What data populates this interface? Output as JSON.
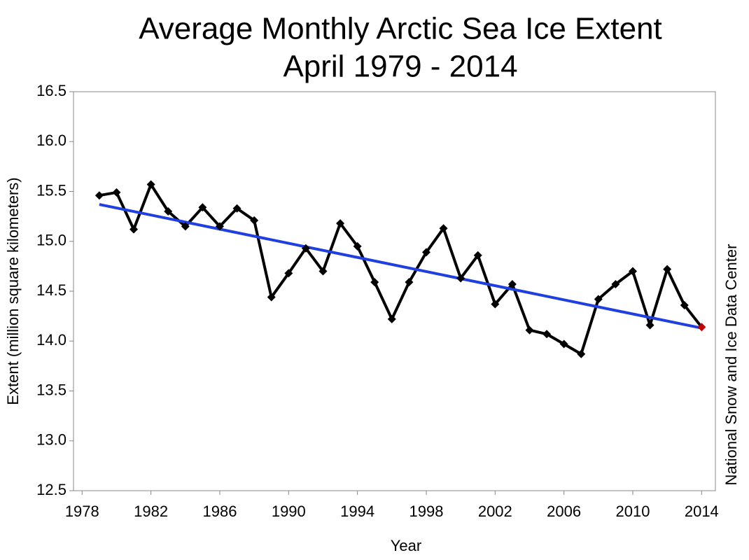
{
  "chart_data": {
    "type": "line",
    "title": "Average Monthly Arctic Sea Ice Extent",
    "subtitle": "April 1979 - 2014",
    "x_label": "Year",
    "y_label": "Extent (million square kilometers)",
    "source": "National Snow and Ice Data Center",
    "x": [
      1979,
      1980,
      1981,
      1982,
      1983,
      1984,
      1985,
      1986,
      1987,
      1988,
      1989,
      1990,
      1991,
      1992,
      1993,
      1994,
      1995,
      1996,
      1997,
      1998,
      1999,
      2000,
      2001,
      2002,
      2003,
      2004,
      2005,
      2006,
      2007,
      2008,
      2009,
      2010,
      2011,
      2012,
      2013,
      2014
    ],
    "values": [
      15.46,
      15.49,
      15.12,
      15.57,
      15.3,
      15.15,
      15.34,
      15.15,
      15.33,
      15.21,
      14.44,
      14.68,
      14.93,
      14.7,
      15.18,
      14.95,
      14.59,
      14.22,
      14.59,
      14.89,
      15.13,
      14.63,
      14.86,
      14.37,
      14.57,
      14.11,
      14.07,
      13.97,
      13.87,
      14.42,
      14.57,
      14.7,
      14.16,
      14.72,
      14.36,
      14.14
    ],
    "color": "#000000",
    "last_point_color": "#c00000",
    "trend": {
      "x": [
        1979,
        2014
      ],
      "values": [
        15.37,
        14.13
      ],
      "color": "#1f3fe0"
    },
    "xlim": [
      1977.5,
      2014.8
    ],
    "ylim": [
      12.5,
      16.5
    ],
    "xticks": [
      1978,
      1982,
      1986,
      1990,
      1994,
      1998,
      2002,
      2006,
      2010,
      2014
    ],
    "yticks": [
      12.5,
      {
        "value": 13,
        "label": "13.0"
      },
      13.5,
      {
        "value": 14,
        "label": "14.0"
      },
      14.5,
      {
        "value": 15,
        "label": "15.0"
      },
      15.5,
      {
        "value": 16,
        "label": "16.0"
      },
      16.5
    ],
    "grid": false
  }
}
